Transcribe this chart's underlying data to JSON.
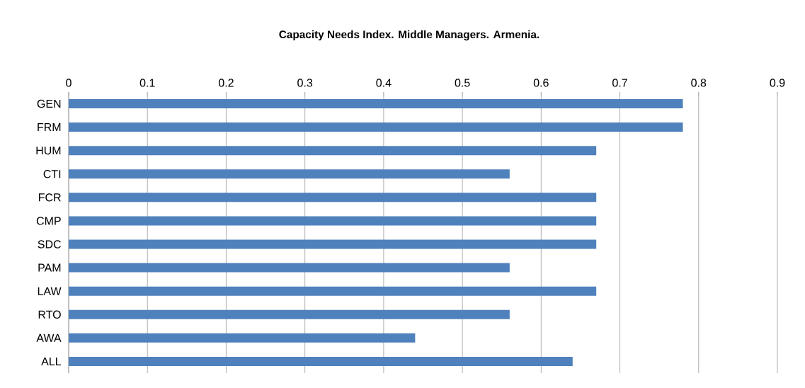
{
  "chart_data": {
    "type": "bar",
    "orientation": "horizontal",
    "title": "Capacity Needs Index. Middle Managers. Armenia.",
    "categories": [
      "GEN",
      "FRM",
      "HUM",
      "CTI",
      "FCR",
      "CMP",
      "SDC",
      "PAM",
      "LAW",
      "RTO",
      "AWA",
      "ALL"
    ],
    "values": [
      0.78,
      0.78,
      0.67,
      0.56,
      0.67,
      0.67,
      0.67,
      0.56,
      0.67,
      0.56,
      0.44,
      0.64
    ],
    "color": "#4f81bd",
    "xlim": [
      0,
      0.9
    ],
    "xticks": [
      0,
      0.1,
      0.2,
      0.3,
      0.4,
      0.5,
      0.6,
      0.7,
      0.8,
      0.9
    ],
    "grid": "x"
  }
}
